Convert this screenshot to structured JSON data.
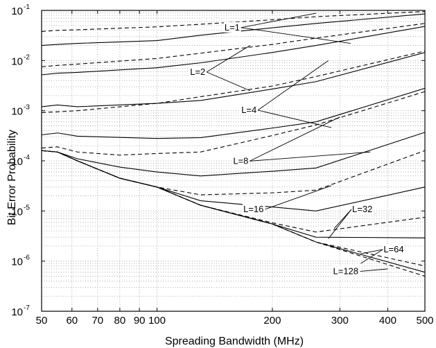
{
  "chart_data": {
    "type": "line",
    "xlabel": "Spreading Bandwidth (MHz)",
    "ylabel": "Bit Error Probability",
    "xscale": "log",
    "yscale": "log",
    "xlim": [
      50,
      500
    ],
    "ylim": [
      1e-07,
      0.1
    ],
    "grid": true,
    "x_ticks": [
      50,
      60,
      70,
      80,
      90,
      100,
      200,
      300,
      400,
      500
    ],
    "x_tick_labels": [
      "50",
      "60",
      "70",
      "80",
      "90",
      "100",
      "200",
      "300",
      "400",
      "500"
    ],
    "y_ticks": [
      {
        "value": 1e-07,
        "base": "10",
        "exp": "-7"
      },
      {
        "value": 1e-06,
        "base": "10",
        "exp": "-6"
      },
      {
        "value": 1e-05,
        "base": "10",
        "exp": "-5"
      },
      {
        "value": 0.0001,
        "base": "10",
        "exp": "-4"
      },
      {
        "value": 0.001,
        "base": "10",
        "exp": "-3"
      },
      {
        "value": 0.01,
        "base": "10",
        "exp": "-2"
      },
      {
        "value": 0.1,
        "base": "10",
        "exp": "-1"
      }
    ],
    "series": [
      {
        "label": "L=1",
        "style": "solid",
        "x": [
          50,
          55,
          62,
          100,
          130,
          200,
          260,
          500
        ],
        "y": [
          0.02,
          0.021,
          0.022,
          0.025,
          0.032,
          0.045,
          0.055,
          0.085
        ]
      },
      {
        "label": "L=1",
        "style": "dashed",
        "x": [
          50,
          55,
          62,
          100,
          130,
          200,
          260,
          500
        ],
        "y": [
          0.038,
          0.04,
          0.041,
          0.047,
          0.053,
          0.065,
          0.075,
          0.095
        ]
      },
      {
        "label": "L=2",
        "style": "solid",
        "x": [
          50,
          55,
          62,
          100,
          130,
          200,
          260,
          500
        ],
        "y": [
          0.0052,
          0.0056,
          0.0058,
          0.0072,
          0.009,
          0.0145,
          0.02,
          0.048
        ]
      },
      {
        "label": "L=2",
        "style": "dashed",
        "x": [
          50,
          55,
          62,
          100,
          130,
          200,
          260,
          500
        ],
        "y": [
          0.0075,
          0.008,
          0.0085,
          0.011,
          0.014,
          0.021,
          0.028,
          0.055
        ]
      },
      {
        "label": "L=4",
        "style": "solid",
        "x": [
          50,
          55,
          62,
          100,
          130,
          200,
          260,
          500
        ],
        "y": [
          0.0012,
          0.0013,
          0.0012,
          0.0014,
          0.0016,
          0.0027,
          0.0038,
          0.0145
        ]
      },
      {
        "label": "L=4",
        "style": "dashed",
        "x": [
          50,
          55,
          62,
          100,
          130,
          200,
          260,
          500
        ],
        "y": [
          0.00092,
          0.00095,
          0.001,
          0.0014,
          0.0019,
          0.0031,
          0.0048,
          0.0155
        ]
      },
      {
        "label": "L=8",
        "style": "solid",
        "x": [
          50,
          55,
          62,
          100,
          130,
          200,
          260,
          500
        ],
        "y": [
          0.00033,
          0.00036,
          0.00031,
          0.00028,
          0.00029,
          0.00045,
          0.0006,
          0.0028
        ]
      },
      {
        "label": "L=8",
        "style": "dashed",
        "x": [
          50,
          55,
          62,
          80,
          100,
          130,
          200,
          260,
          500
        ],
        "y": [
          0.00018,
          0.00019,
          0.00015,
          0.00013,
          0.00014,
          0.00015,
          0.00032,
          0.00052,
          0.0024
        ]
      },
      {
        "label": "L=16",
        "style": "solid",
        "x": [
          50,
          55,
          62,
          80,
          100,
          130,
          200,
          260,
          500
        ],
        "y": [
          0.00016,
          0.00015,
          0.00011,
          7.5e-05,
          6e-05,
          5e-05,
          6.2e-05,
          7.2e-05,
          0.00037
        ]
      },
      {
        "label": "L=16",
        "style": "dashed",
        "x": [
          50,
          55,
          62,
          80,
          100,
          130,
          200,
          260,
          500
        ],
        "y": [
          0.00016,
          0.00015,
          0.0001,
          4.5e-05,
          3e-05,
          2.1e-05,
          2.3e-05,
          2.6e-05,
          0.00016
        ]
      },
      {
        "label": "L=32",
        "style": "solid",
        "x": [
          50,
          55,
          62,
          80,
          100,
          130,
          200,
          260,
          500
        ],
        "y": [
          0.00016,
          0.00015,
          0.0001,
          4.5e-05,
          3e-05,
          1.6e-05,
          1.2e-05,
          1e-05,
          3e-05
        ]
      },
      {
        "label": "L=32",
        "style": "dashed",
        "x": [
          50,
          55,
          62,
          80,
          100,
          130,
          200,
          260,
          500
        ],
        "y": [
          0.00016,
          0.00015,
          0.0001,
          4.5e-05,
          3e-05,
          1.3e-05,
          5.8e-06,
          3.8e-06,
          7.5e-06
        ]
      },
      {
        "label": "L=64",
        "style": "solid",
        "x": [
          50,
          55,
          62,
          80,
          100,
          130,
          200,
          260,
          500
        ],
        "y": [
          0.00016,
          0.00015,
          0.0001,
          4.5e-05,
          3e-05,
          1.3e-05,
          5.5e-06,
          3e-06,
          2.9e-06
        ]
      },
      {
        "label": "L=64",
        "style": "dashed",
        "x": [
          50,
          55,
          62,
          80,
          100,
          130,
          200,
          260,
          500
        ],
        "y": [
          0.00016,
          0.00015,
          0.0001,
          4.5e-05,
          3e-05,
          1.3e-05,
          5.5e-06,
          2.4e-06,
          8e-07
        ]
      },
      {
        "label": "L=128",
        "style": "solid",
        "x": [
          50,
          55,
          62,
          80,
          100,
          130,
          200,
          260,
          500
        ],
        "y": [
          0.00016,
          0.00015,
          0.0001,
          4.5e-05,
          3e-05,
          1.3e-05,
          5.5e-06,
          2.4e-06,
          6e-07
        ]
      },
      {
        "label": "L=128",
        "style": "dashed",
        "x": [
          50,
          55,
          62,
          80,
          100,
          130,
          200,
          260,
          500
        ],
        "y": [
          0.00016,
          0.00015,
          0.0001,
          4.5e-05,
          3e-05,
          1.3e-05,
          5.5e-06,
          2.4e-06,
          5e-07
        ]
      }
    ],
    "annotations": [
      {
        "text": "L=1",
        "x": 150,
        "y": 0.04,
        "pointers": [
          {
            "x": 260,
            "y": 0.088
          },
          {
            "x": 320,
            "y": 0.022
          }
        ]
      },
      {
        "text": "L=2",
        "x": 122,
        "y": 0.0052,
        "pointers": [
          {
            "x": 175,
            "y": 0.02
          },
          {
            "x": 175,
            "y": 0.0025
          }
        ]
      },
      {
        "text": "L=4",
        "x": 166,
        "y": 0.0009,
        "pointers": [
          {
            "x": 280,
            "y": 0.01
          },
          {
            "x": 285,
            "y": 0.00046
          }
        ]
      },
      {
        "text": "L=8",
        "x": 158,
        "y": 8.7e-05,
        "pointers": [
          {
            "x": 300,
            "y": 0.00075
          },
          {
            "x": 360,
            "y": 0.00015
          }
        ]
      },
      {
        "text": "L=16",
        "x": 168,
        "y": 9.5e-06,
        "pointers": [
          {
            "x": 285,
            "y": 3.2e-05
          }
        ]
      },
      {
        "text": "L=32",
        "x": 323,
        "y": 9.5e-06,
        "pointers": [
          {
            "x": 290,
            "y": 4.5e-06
          },
          {
            "x": 280,
            "y": 2.8e-06
          }
        ]
      },
      {
        "text": "L=64",
        "x": 390,
        "y": 1.5e-06,
        "pointers": [
          {
            "x": 340,
            "y": 1.4e-06
          },
          {
            "x": 340,
            "y": 9e-07
          }
        ]
      },
      {
        "text": "L=128",
        "x": 288,
        "y": 5.5e-07,
        "pointers": [
          {
            "x": 400,
            "y": 7e-07
          }
        ]
      }
    ]
  }
}
